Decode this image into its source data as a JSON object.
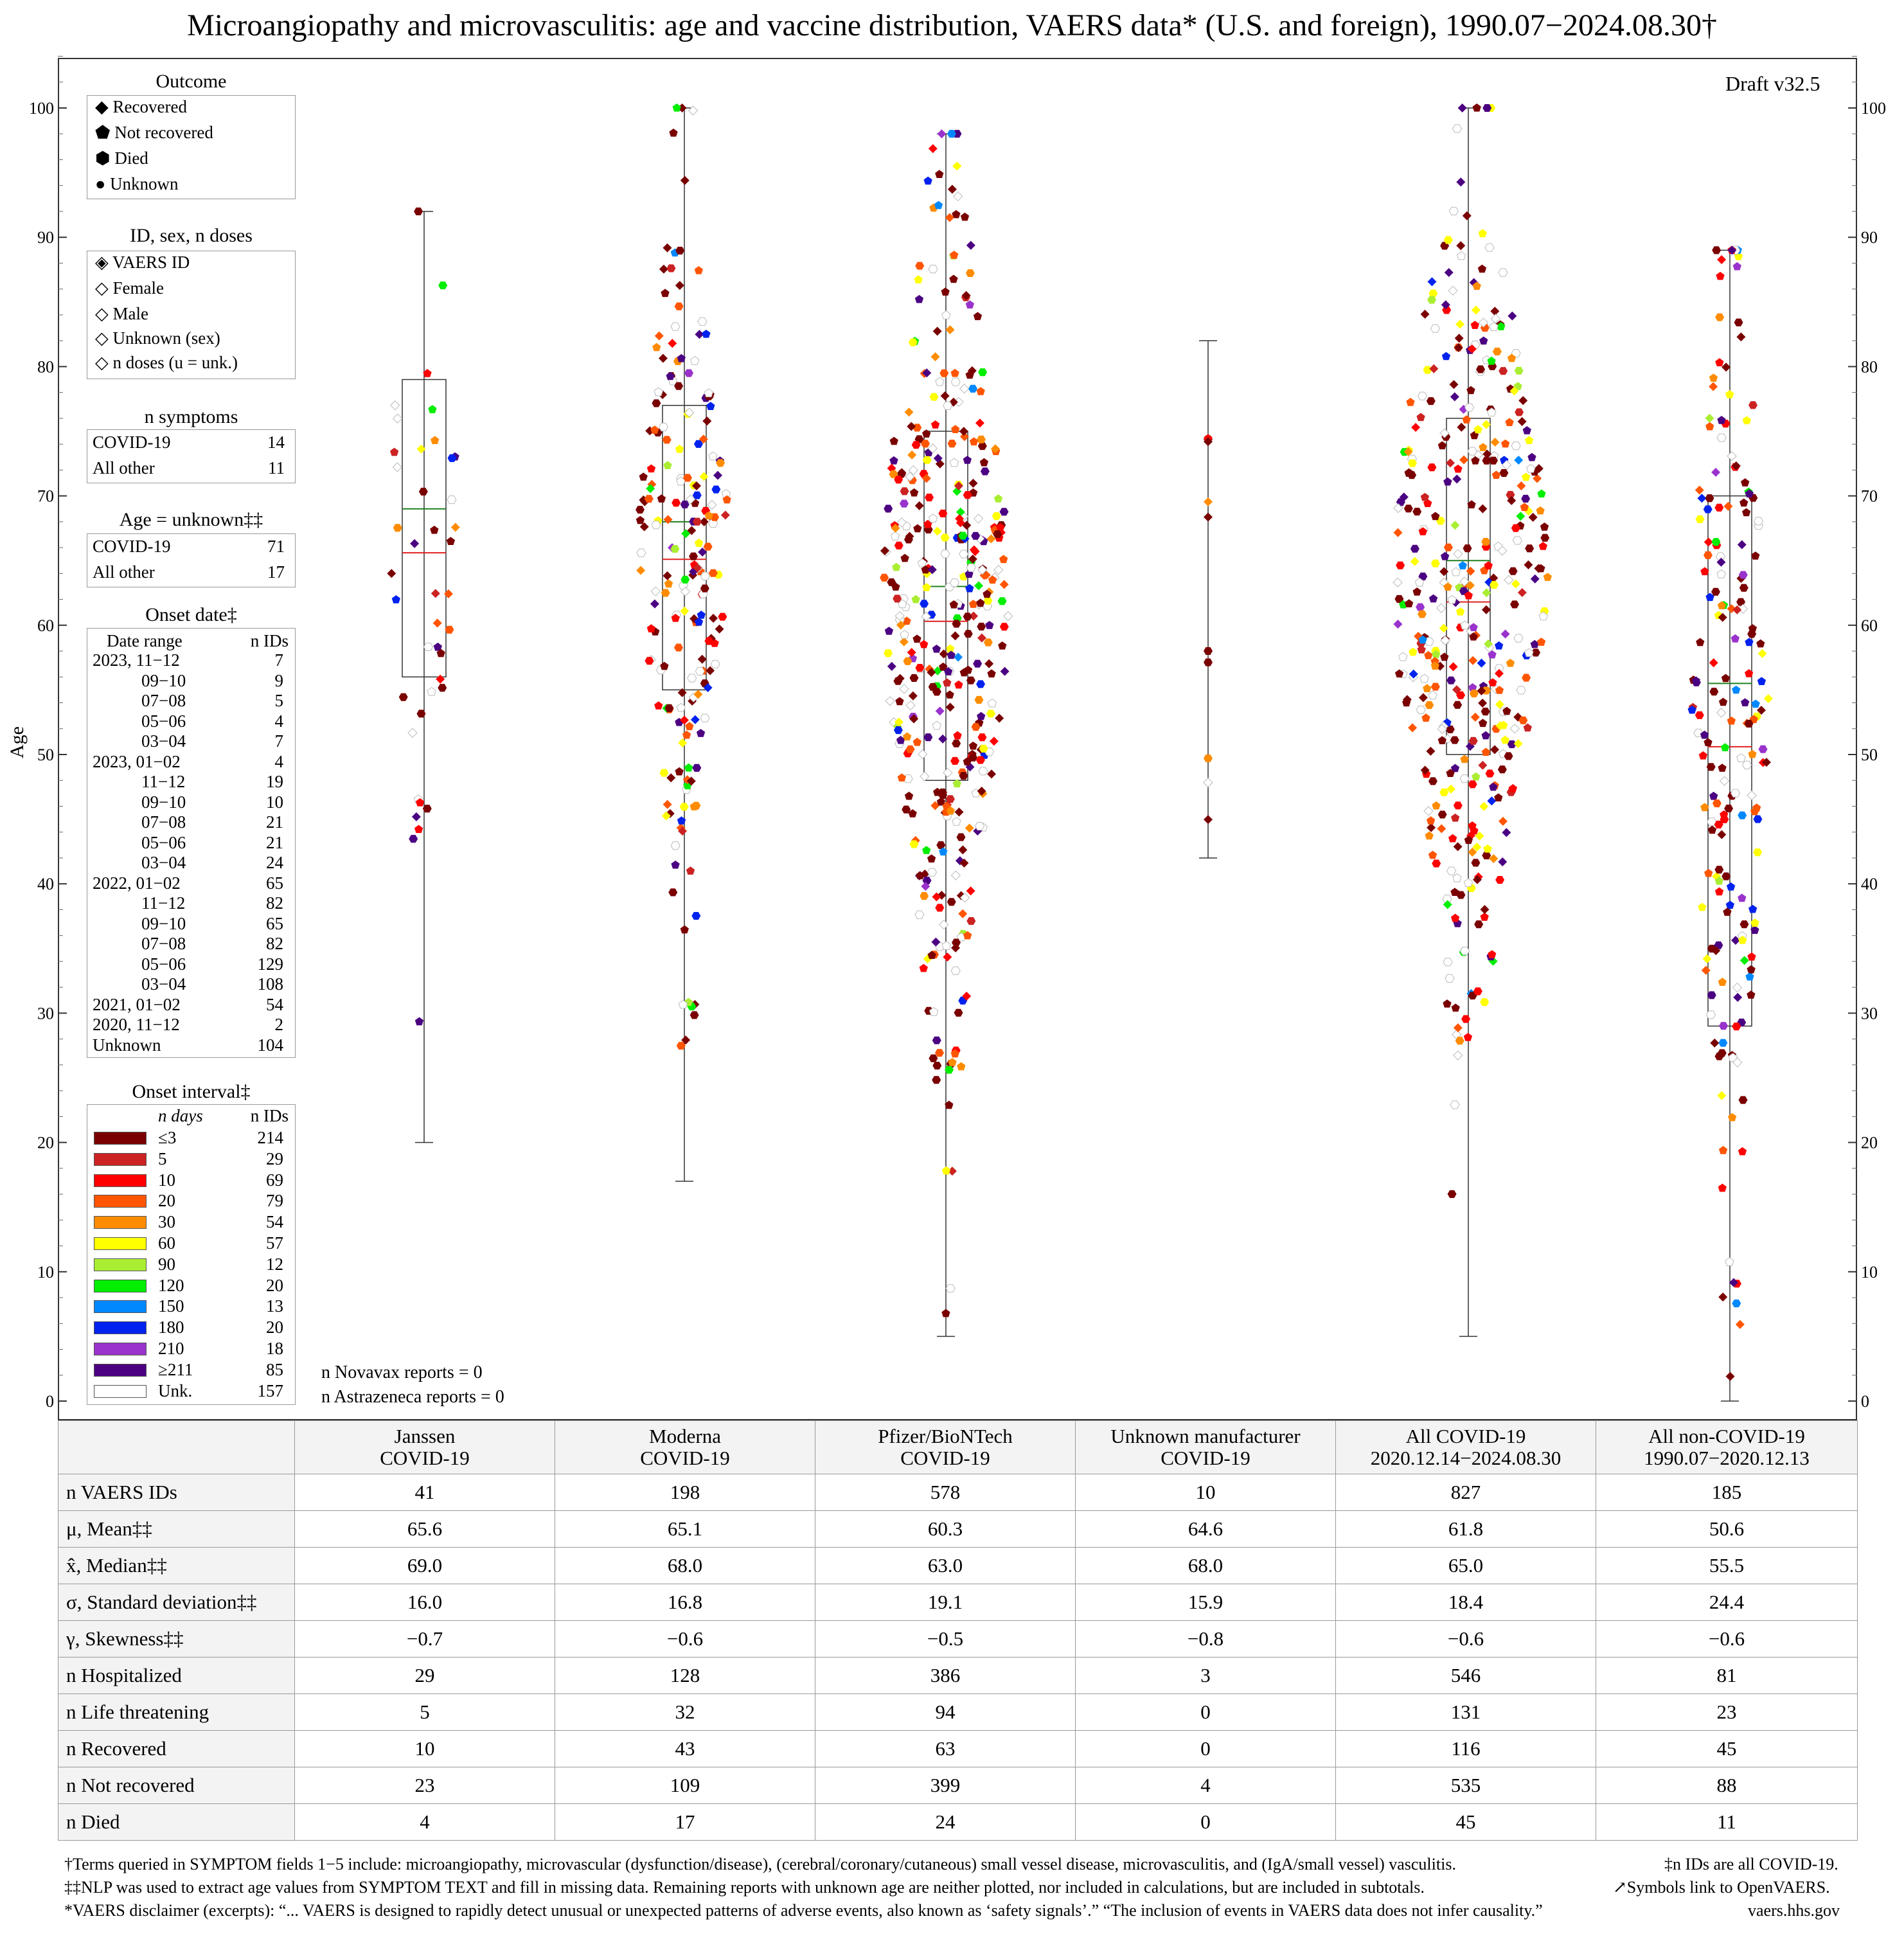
{
  "title": "Microangiopathy and microvasculitis: age and vaccine distribution, VAERS data* (U.S. and foreign), 1990.07−2024.08.30†",
  "draft": "Draft v32.5",
  "y_axis_label": "Age",
  "legend": {
    "outcome": {
      "title": "Outcome",
      "items": [
        "Recovered",
        "Not recovered",
        "Died",
        "Unknown"
      ]
    },
    "id_sex": {
      "title": "ID, sex, n doses",
      "items": [
        "VAERS ID",
        "Female",
        "Male",
        "Unknown (sex)",
        "n doses (u = unk.)"
      ]
    },
    "n_symptoms": {
      "title": "n symptoms",
      "rows": [
        {
          "label": "COVID-19",
          "value": "14"
        },
        {
          "label": "All other",
          "value": "11"
        }
      ]
    },
    "age_unknown": {
      "title": "Age = unknown‡‡",
      "rows": [
        {
          "label": "COVID-19",
          "value": "71"
        },
        {
          "label": "All other",
          "value": "17"
        }
      ]
    },
    "onset_date": {
      "title": "Onset date‡",
      "header": {
        "range": "Date range",
        "ids": "n IDs"
      },
      "rows": [
        {
          "range": "2023, 11−12",
          "ids": "7"
        },
        {
          "range": "09−10",
          "ids": "9"
        },
        {
          "range": "07−08",
          "ids": "5"
        },
        {
          "range": "05−06",
          "ids": "4"
        },
        {
          "range": "03−04",
          "ids": "7"
        },
        {
          "range": "2023, 01−02",
          "ids": "4"
        },
        {
          "range": "11−12",
          "ids": "19"
        },
        {
          "range": "09−10",
          "ids": "10"
        },
        {
          "range": "07−08",
          "ids": "21"
        },
        {
          "range": "05−06",
          "ids": "21"
        },
        {
          "range": "03−04",
          "ids": "24"
        },
        {
          "range": "2022, 01−02",
          "ids": "65"
        },
        {
          "range": "11−12",
          "ids": "82"
        },
        {
          "range": "09−10",
          "ids": "65"
        },
        {
          "range": "07−08",
          "ids": "82"
        },
        {
          "range": "05−06",
          "ids": "129"
        },
        {
          "range": "03−04",
          "ids": "108"
        },
        {
          "range": "2021, 01−02",
          "ids": "54"
        },
        {
          "range": "2020, 11−12",
          "ids": "2"
        },
        {
          "range": "Unknown",
          "ids": "104"
        }
      ]
    },
    "onset_interval": {
      "title": "Onset interval‡",
      "header": {
        "days": "n days",
        "ids": "n IDs"
      },
      "rows": [
        {
          "days": "≤3",
          "ids": "214",
          "color": "#7a0000"
        },
        {
          "days": "5",
          "ids": "29",
          "color": "#cc2222"
        },
        {
          "days": "10",
          "ids": "69",
          "color": "#ff0000"
        },
        {
          "days": "20",
          "ids": "79",
          "color": "#ff5500"
        },
        {
          "days": "30",
          "ids": "54",
          "color": "#ff8c00"
        },
        {
          "days": "60",
          "ids": "57",
          "color": "#ffff00"
        },
        {
          "days": "90",
          "ids": "12",
          "color": "#aaee33"
        },
        {
          "days": "120",
          "ids": "20",
          "color": "#00ee00"
        },
        {
          "days": "150",
          "ids": "13",
          "color": "#0088ff"
        },
        {
          "days": "180",
          "ids": "20",
          "color": "#0022ee"
        },
        {
          "days": "210",
          "ids": "18",
          "color": "#9933cc"
        },
        {
          "days": "≥211",
          "ids": "85",
          "color": "#4b0082"
        },
        {
          "days": "Unk.",
          "ids": "157",
          "color": "#ffffff"
        }
      ]
    }
  },
  "notes": {
    "novavax": "n Novavax reports = 0",
    "astrazeneca": "n Astrazeneca reports = 0"
  },
  "chart_data": {
    "type": "scatter",
    "title": "Microangiopathy and microvasculitis: age and vaccine distribution",
    "ylabel": "Age",
    "ylim": [
      0,
      104
    ],
    "yticks": [
      0,
      10,
      20,
      30,
      40,
      50,
      60,
      70,
      80,
      90,
      100
    ],
    "categories": [
      "Janssen COVID-19",
      "Moderna COVID-19",
      "Pfizer/BioNTech COVID-19",
      "Unknown manufacturer COVID-19",
      "All COVID-19",
      "All non-COVID-19"
    ],
    "series": [
      {
        "name": "Janssen",
        "n": 41,
        "min": 20,
        "max": 92,
        "q1": 56,
        "q3": 79,
        "median": 69,
        "mean": 65.6,
        "sd": 16.0
      },
      {
        "name": "Moderna",
        "n": 198,
        "min": 17,
        "max": 100,
        "q1": 55,
        "q3": 77,
        "median": 68,
        "mean": 65.1,
        "sd": 16.8
      },
      {
        "name": "Pfizer/BioNTech",
        "n": 578,
        "min": 5,
        "max": 98,
        "q1": 48,
        "q3": 75,
        "median": 63,
        "mean": 60.3,
        "sd": 19.1
      },
      {
        "name": "Unknown manufacturer",
        "n": 10,
        "min": 42,
        "max": 82,
        "q1": null,
        "q3": null,
        "median": 68,
        "mean": 64.6,
        "sd": 15.9
      },
      {
        "name": "All COVID-19",
        "n": 827,
        "min": 5,
        "max": 100,
        "q1": 50,
        "q3": 76,
        "median": 65,
        "mean": 61.8,
        "sd": 18.4
      },
      {
        "name": "All non-COVID-19",
        "n": 185,
        "min": 0,
        "max": 89,
        "q1": 29,
        "q3": 70,
        "median": 55.5,
        "mean": 50.6,
        "sd": 24.4
      }
    ]
  },
  "table": {
    "headers": [
      [
        "Janssen",
        "COVID-19"
      ],
      [
        "Moderna",
        "COVID-19"
      ],
      [
        "Pfizer/BioNTech",
        "COVID-19"
      ],
      [
        "Unknown manufacturer",
        "COVID-19"
      ],
      [
        "All COVID-19",
        "2020.12.14−2024.08.30"
      ],
      [
        "All non-COVID-19",
        "1990.07−2020.12.13"
      ]
    ],
    "rows": [
      {
        "label": "n VAERS IDs",
        "values": [
          "41",
          "198",
          "578",
          "10",
          "827",
          "185"
        ]
      },
      {
        "label": "μ, Mean‡‡",
        "values": [
          "65.6",
          "65.1",
          "60.3",
          "64.6",
          "61.8",
          "50.6"
        ]
      },
      {
        "label": "x̂, Median‡‡",
        "values": [
          "69.0",
          "68.0",
          "63.0",
          "68.0",
          "65.0",
          "55.5"
        ]
      },
      {
        "label": "σ, Standard deviation‡‡",
        "values": [
          "16.0",
          "16.8",
          "19.1",
          "15.9",
          "18.4",
          "24.4"
        ]
      },
      {
        "label": "γ, Skewness‡‡",
        "values": [
          "−0.7",
          "−0.6",
          "−0.5",
          "−0.8",
          "−0.6",
          "−0.6"
        ]
      },
      {
        "label": "n Hospitalized",
        "values": [
          "29",
          "128",
          "386",
          "3",
          "546",
          "81"
        ]
      },
      {
        "label": "n Life threatening",
        "values": [
          "5",
          "32",
          "94",
          "0",
          "131",
          "23"
        ]
      },
      {
        "label": "n Recovered",
        "values": [
          "10",
          "43",
          "63",
          "0",
          "116",
          "45"
        ]
      },
      {
        "label": "n Not recovered",
        "values": [
          "23",
          "109",
          "399",
          "4",
          "535",
          "88"
        ]
      },
      {
        "label": "n Died",
        "values": [
          "4",
          "17",
          "24",
          "0",
          "45",
          "11"
        ]
      }
    ]
  },
  "footnotes": {
    "dagger": "†Terms queried in SYMPTOM fields 1−5 include: microangiopathy, microvascular (dysfunction/disease), (cerebral/coronary/cutaneous) small vessel disease, microvasculitis, and (IgA/small vessel) vasculitis.",
    "dagger_right": "‡n IDs are all COVID-19.",
    "ddagger": "‡‡NLP was used to extract age values from SYMPTOM TEXT and fill in missing data. Remaining reports with unknown age are neither plotted, nor included in calculations, but are included in subtotals.",
    "ddagger_right": "↗Symbols link to OpenVAERS.",
    "star": "*VAERS disclaimer (excerpts): “... VAERS is designed to rapidly detect unusual or unexpected patterns of adverse events, also known as ‘safety signals’.” “The inclusion of events in VAERS data does not infer causality.”",
    "star_right": "vaers.hhs.gov"
  }
}
